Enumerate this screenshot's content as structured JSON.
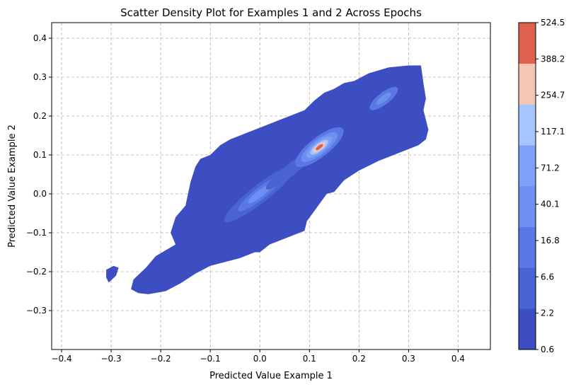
{
  "chart_data": {
    "type": "contour",
    "title": "Scatter Density Plot for Examples 1 and 2 Across Epochs",
    "xlabel": "Predicted Value Example 1",
    "ylabel": "Predicted Value Example 2",
    "xlim": [
      -0.42,
      0.465
    ],
    "ylim": [
      -0.4,
      0.44
    ],
    "xticks": [
      "−0.4",
      "−0.3",
      "−0.2",
      "−0.1",
      "0.0",
      "0.1",
      "0.2",
      "0.3",
      "0.4"
    ],
    "xtick_values": [
      -0.4,
      -0.3,
      -0.2,
      -0.1,
      0.0,
      0.1,
      0.2,
      0.3,
      0.4
    ],
    "yticks": [
      "−0.3",
      "−0.2",
      "−0.1",
      "0.0",
      "0.1",
      "0.2",
      "0.3",
      "0.4"
    ],
    "ytick_values": [
      -0.3,
      -0.2,
      -0.1,
      0.0,
      0.1,
      0.2,
      0.3,
      0.4
    ],
    "grid": true,
    "grid_style": "dashed",
    "colormap": "coolwarm",
    "colorbar_levels": [
      "0.6",
      "2.2",
      "6.6",
      "16.8",
      "40.1",
      "71.2",
      "117.1",
      "254.7",
      "388.2",
      "524.5"
    ],
    "colorbar_colors": [
      "#3c4ec2",
      "#4a63d3",
      "#5a78e4",
      "#6c8ff1",
      "#7da0f9",
      "#a6c4fe",
      "#f3c7b1",
      "#de614d"
    ],
    "density_peaks": [
      {
        "x": 0.12,
        "y": 0.12,
        "level": "388.2–524.5"
      },
      {
        "x": 0.0,
        "y": 0.0,
        "level": "16.8–40.1"
      },
      {
        "x": 0.25,
        "y": 0.245,
        "level": "16.8–40.1"
      }
    ],
    "outline": [
      [
        -0.245,
        -0.255
      ],
      [
        -0.225,
        -0.258
      ],
      [
        -0.19,
        -0.25
      ],
      [
        -0.16,
        -0.23
      ],
      [
        -0.13,
        -0.205
      ],
      [
        -0.1,
        -0.185
      ],
      [
        -0.07,
        -0.175
      ],
      [
        -0.04,
        -0.165
      ],
      [
        -0.01,
        -0.15
      ],
      [
        0.0,
        -0.15
      ],
      [
        0.02,
        -0.13
      ],
      [
        0.06,
        -0.11
      ],
      [
        0.09,
        -0.095
      ],
      [
        0.095,
        -0.07
      ],
      [
        0.115,
        -0.035
      ],
      [
        0.135,
        -0.0
      ],
      [
        0.15,
        0.005
      ],
      [
        0.17,
        0.035
      ],
      [
        0.2,
        0.06
      ],
      [
        0.24,
        0.085
      ],
      [
        0.27,
        0.1
      ],
      [
        0.3,
        0.115
      ],
      [
        0.32,
        0.125
      ],
      [
        0.335,
        0.14
      ],
      [
        0.34,
        0.165
      ],
      [
        0.335,
        0.19
      ],
      [
        0.33,
        0.215
      ],
      [
        0.335,
        0.245
      ],
      [
        0.33,
        0.285
      ],
      [
        0.325,
        0.33
      ],
      [
        0.3,
        0.33
      ],
      [
        0.26,
        0.325
      ],
      [
        0.22,
        0.31
      ],
      [
        0.19,
        0.29
      ],
      [
        0.17,
        0.285
      ],
      [
        0.15,
        0.27
      ],
      [
        0.13,
        0.26
      ],
      [
        0.11,
        0.24
      ],
      [
        0.09,
        0.215
      ],
      [
        0.06,
        0.2
      ],
      [
        0.02,
        0.18
      ],
      [
        -0.03,
        0.155
      ],
      [
        -0.06,
        0.14
      ],
      [
        -0.08,
        0.125
      ],
      [
        -0.1,
        0.1
      ],
      [
        -0.12,
        0.09
      ],
      [
        -0.13,
        0.07
      ],
      [
        -0.14,
        0.03
      ],
      [
        -0.145,
        0.0
      ],
      [
        -0.15,
        -0.03
      ],
      [
        -0.17,
        -0.06
      ],
      [
        -0.18,
        -0.1
      ],
      [
        -0.17,
        -0.13
      ],
      [
        -0.21,
        -0.16
      ],
      [
        -0.23,
        -0.19
      ],
      [
        -0.255,
        -0.22
      ],
      [
        -0.26,
        -0.245
      ]
    ],
    "island": [
      [
        -0.31,
        -0.195
      ],
      [
        -0.295,
        -0.185
      ],
      [
        -0.285,
        -0.19
      ],
      [
        -0.29,
        -0.21
      ],
      [
        -0.3,
        -0.222
      ],
      [
        -0.305,
        -0.228
      ],
      [
        -0.31,
        -0.215
      ]
    ]
  }
}
